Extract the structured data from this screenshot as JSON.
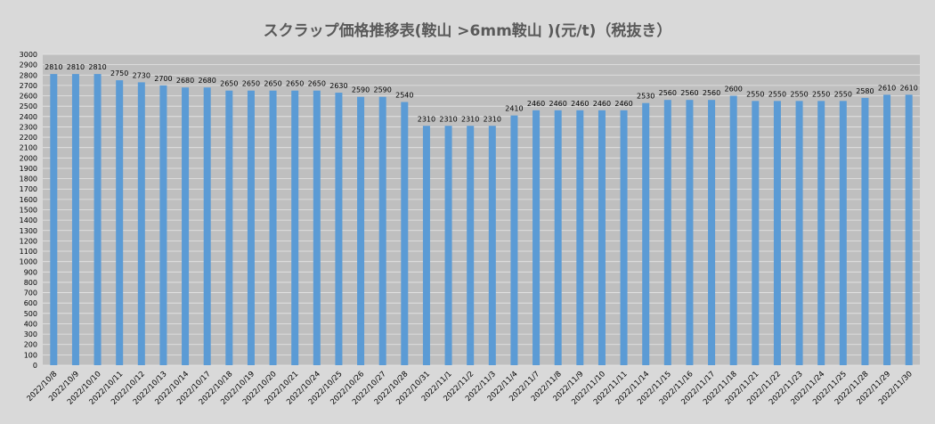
{
  "chart_data": {
    "type": "bar",
    "title": "スクラップ価格推移表(鞍山 >6mm鞍山 )(元/t)（税抜き）",
    "xlabel": "",
    "ylabel": "",
    "ylim": [
      0,
      3000
    ],
    "ytick_step": 100,
    "grid": true,
    "bar_color": "#5b9bd5",
    "plot_bg": "#bfbfbf",
    "categories": [
      "2022/10/8",
      "2022/10/9",
      "2022/10/10",
      "2022/10/11",
      "2022/10/12",
      "2022/10/13",
      "2022/10/14",
      "2022/10/17",
      "2022/10/18",
      "2022/10/19",
      "2022/10/20",
      "2022/10/21",
      "2022/10/24",
      "2022/10/25",
      "2022/10/26",
      "2022/10/27",
      "2022/10/28",
      "2022/10/31",
      "2022/11/1",
      "2022/11/2",
      "2022/11/3",
      "2022/11/4",
      "2022/11/7",
      "2022/11/8",
      "2022/11/9",
      "2022/11/10",
      "2022/11/11",
      "2022/11/14",
      "2022/11/15",
      "2022/11/16",
      "2022/11/17",
      "2022/11/18",
      "2022/11/21",
      "2022/11/22",
      "2022/11/23",
      "2022/11/24",
      "2022/11/25",
      "2022/11/28",
      "2022/11/29",
      "2022/11/30"
    ],
    "values": [
      2810,
      2810,
      2810,
      2750,
      2730,
      2700,
      2680,
      2680,
      2650,
      2650,
      2650,
      2650,
      2650,
      2630,
      2590,
      2590,
      2540,
      2310,
      2310,
      2310,
      2310,
      2410,
      2460,
      2460,
      2460,
      2460,
      2460,
      2530,
      2560,
      2560,
      2560,
      2600,
      2550,
      2550,
      2550,
      2550,
      2550,
      2580,
      2610,
      2610
    ]
  }
}
